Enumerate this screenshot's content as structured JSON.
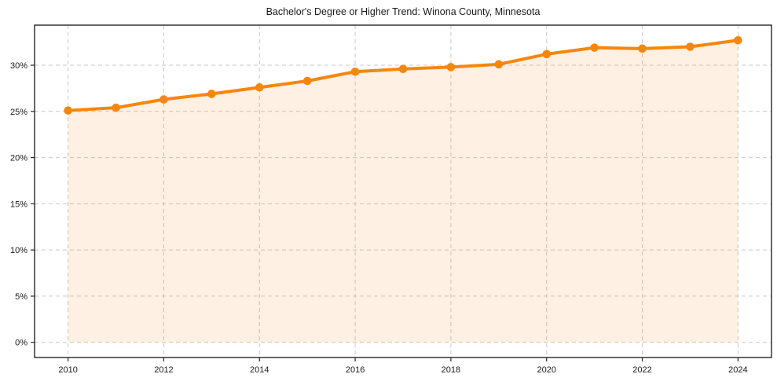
{
  "title": "Bachelor's Degree or Higher Trend: Winona County, Minnesota",
  "chart_data": {
    "type": "line",
    "title": "Bachelor's Degree or Higher Trend: Winona County, Minnesota",
    "x": [
      2010,
      2011,
      2012,
      2013,
      2014,
      2015,
      2016,
      2017,
      2018,
      2019,
      2020,
      2021,
      2022,
      2023,
      2024
    ],
    "values": [
      25.1,
      25.4,
      26.3,
      26.9,
      27.6,
      28.3,
      29.3,
      29.6,
      29.8,
      30.1,
      31.2,
      31.9,
      31.8,
      32.0,
      32.7
    ],
    "xlabel": "",
    "ylabel": "",
    "x_ticks": [
      2010,
      2012,
      2014,
      2016,
      2018,
      2020,
      2022,
      2024
    ],
    "x_tick_labels": [
      "2010",
      "2012",
      "2014",
      "2016",
      "2018",
      "2020",
      "2022",
      "2024"
    ],
    "y_ticks": [
      0,
      5,
      10,
      15,
      20,
      25,
      30
    ],
    "y_tick_labels": [
      "0%",
      "5%",
      "10%",
      "15%",
      "20%",
      "25%",
      "30%"
    ],
    "xlim": [
      2009.3,
      2024.7
    ],
    "ylim": [
      -1.64,
      34.34
    ],
    "grid": true,
    "grid_style": "dashed",
    "legend": "none",
    "marker": "circle",
    "area_fill": true,
    "colors": {
      "line": "#f5870f",
      "marker": "#f5870f",
      "area": "#f5870f",
      "area_opacity": 0.12,
      "grid": "#c9c9c9",
      "axis": "#262626",
      "tick_text": "#1a1a1a",
      "background": "#ffffff"
    }
  }
}
